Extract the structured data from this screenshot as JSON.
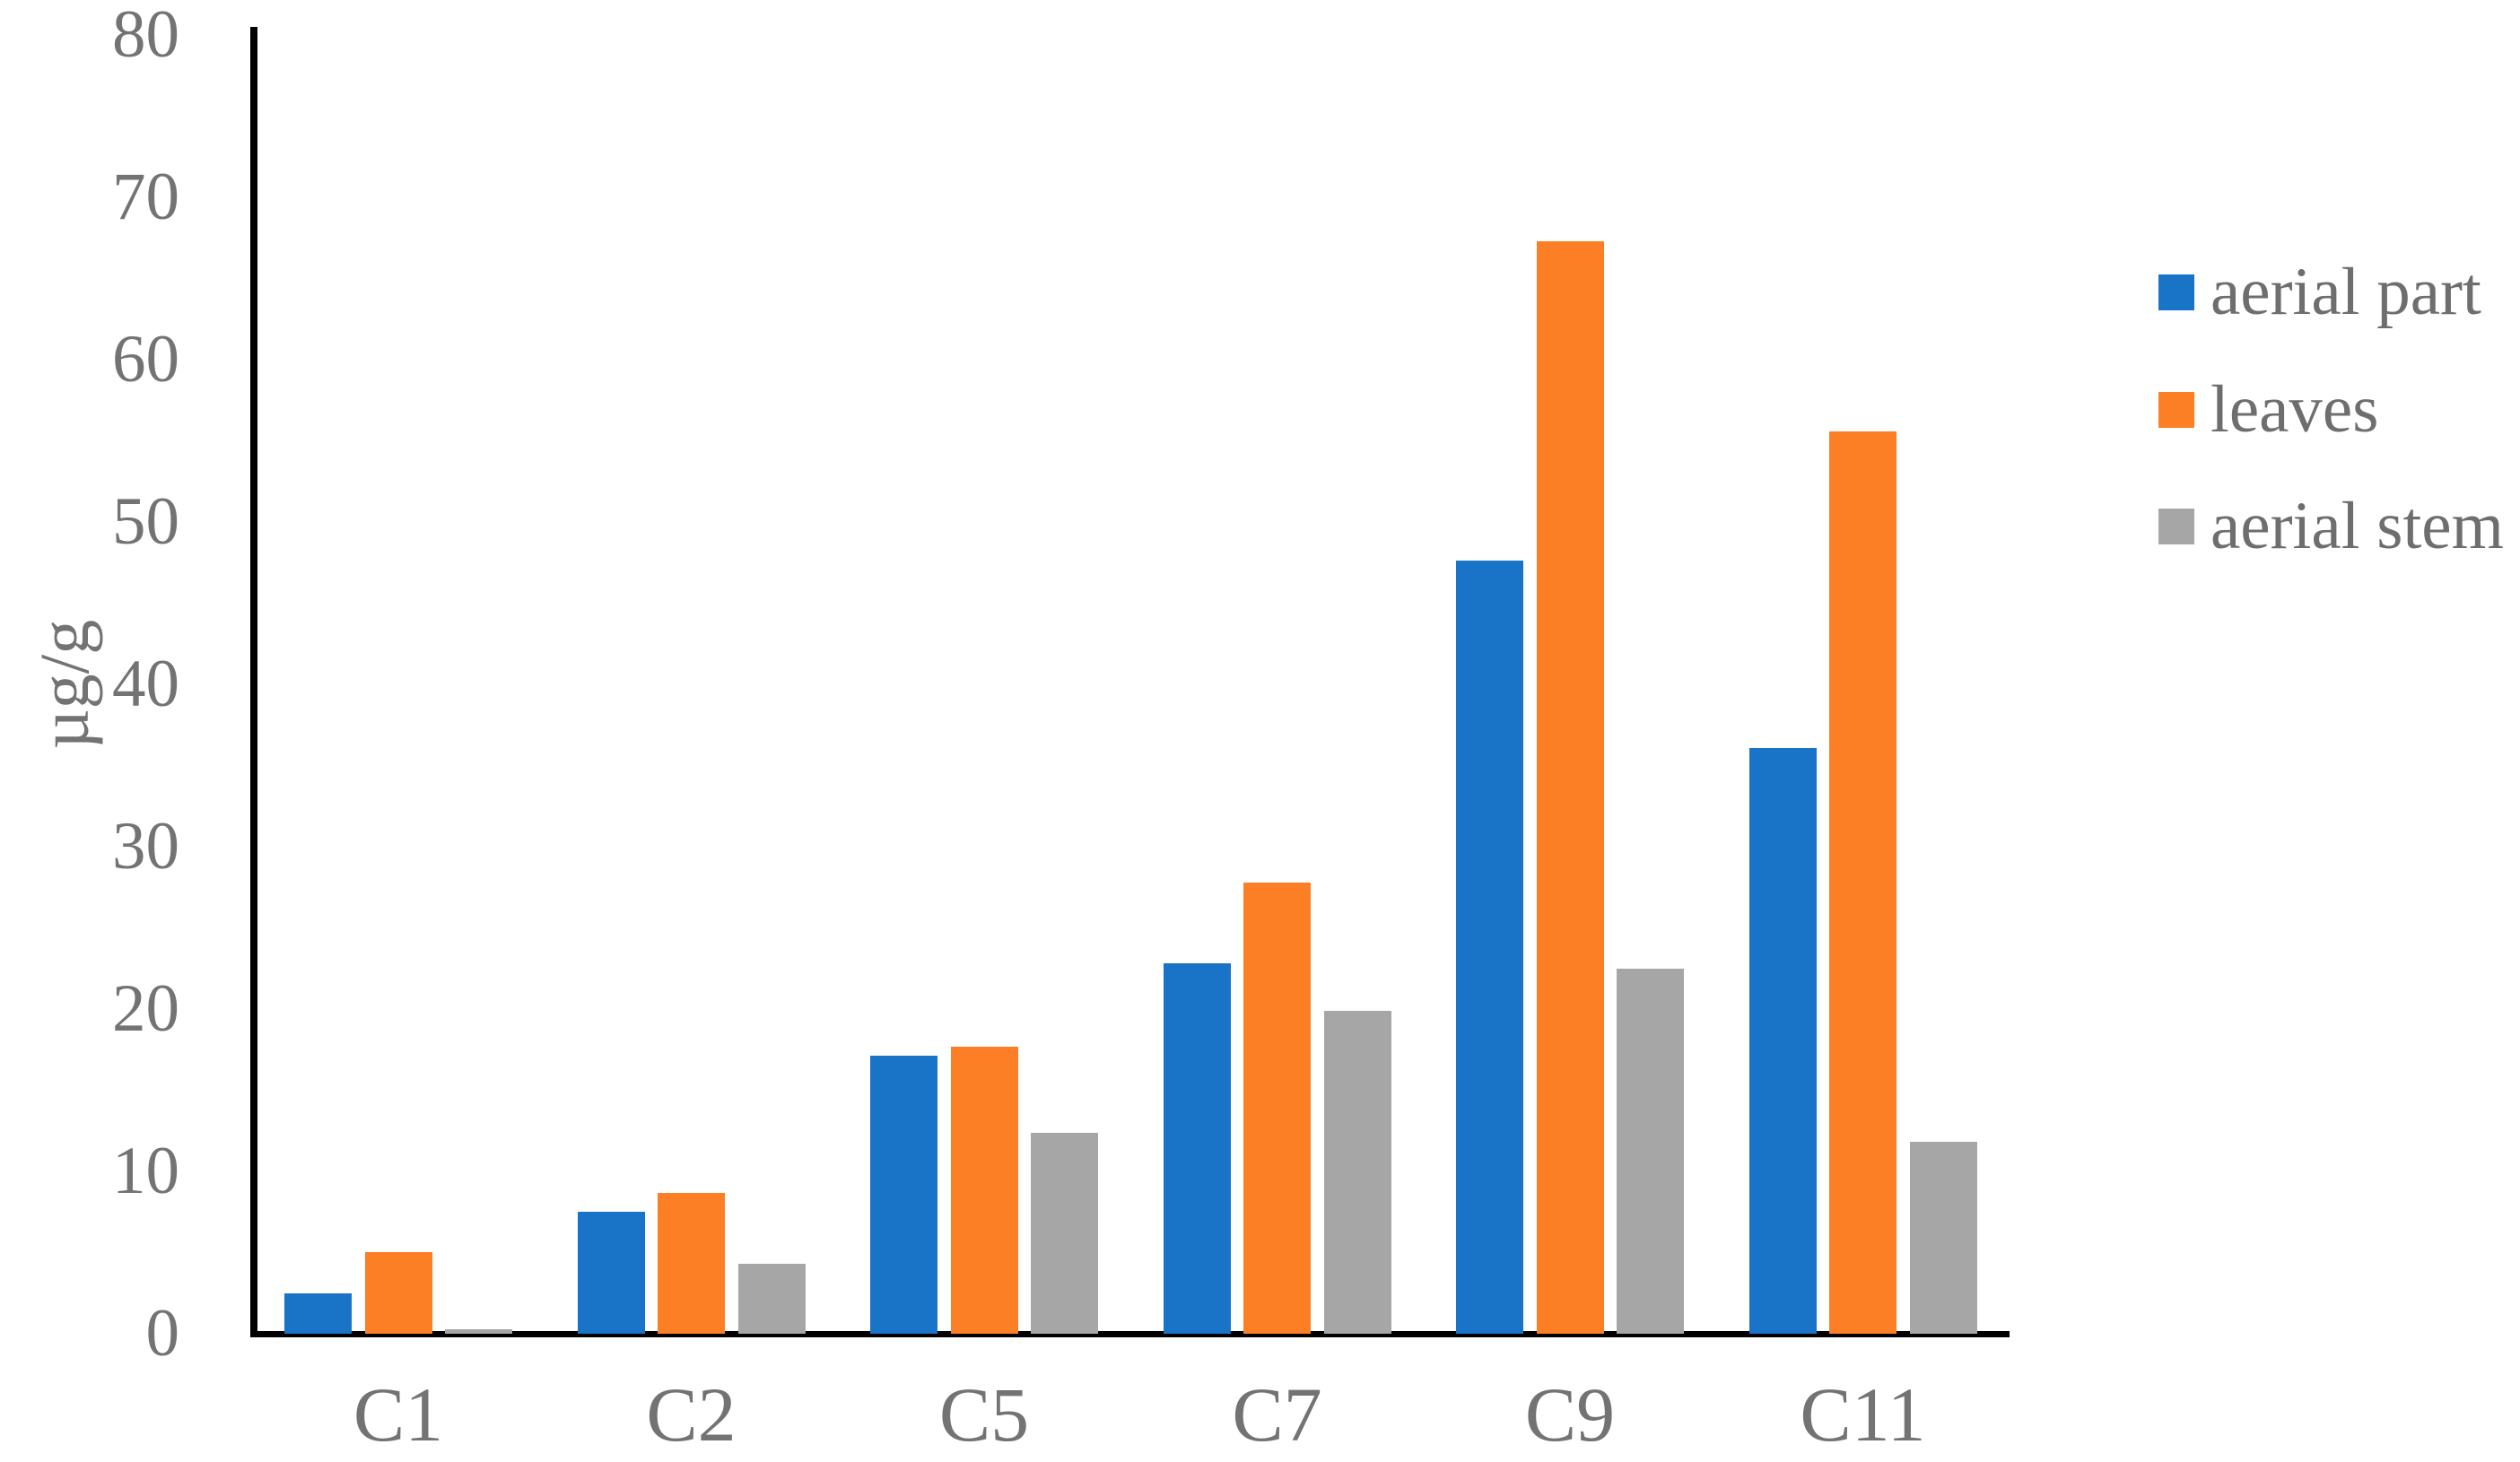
{
  "chart_data": {
    "type": "bar",
    "title": "",
    "categories": [
      "C1",
      "C2",
      "C5",
      "C7",
      "C9",
      "C11"
    ],
    "series": [
      {
        "name": "aerial part",
        "color": "#1973C6",
        "values": [
          2.5,
          7.5,
          17.1,
          22.8,
          47.6,
          36.1
        ]
      },
      {
        "name": "leaves",
        "color": "#FC7E25",
        "values": [
          5.0,
          8.7,
          17.7,
          27.8,
          67.3,
          55.6
        ]
      },
      {
        "name": "aerial stem",
        "color": "#A6A6A6",
        "values": [
          0.3,
          4.3,
          12.4,
          19.9,
          22.5,
          11.8
        ]
      }
    ],
    "xlabel": "",
    "ylabel": "µg/g",
    "ylim": [
      0,
      80
    ],
    "ytick_step": 10,
    "ytick_labels": [
      "0",
      "10",
      "20",
      "30",
      "40",
      "50",
      "60",
      "70",
      "80"
    ],
    "grid": false,
    "legend_position": "right",
    "axis_color": "#000000",
    "text_color": "#737373"
  }
}
